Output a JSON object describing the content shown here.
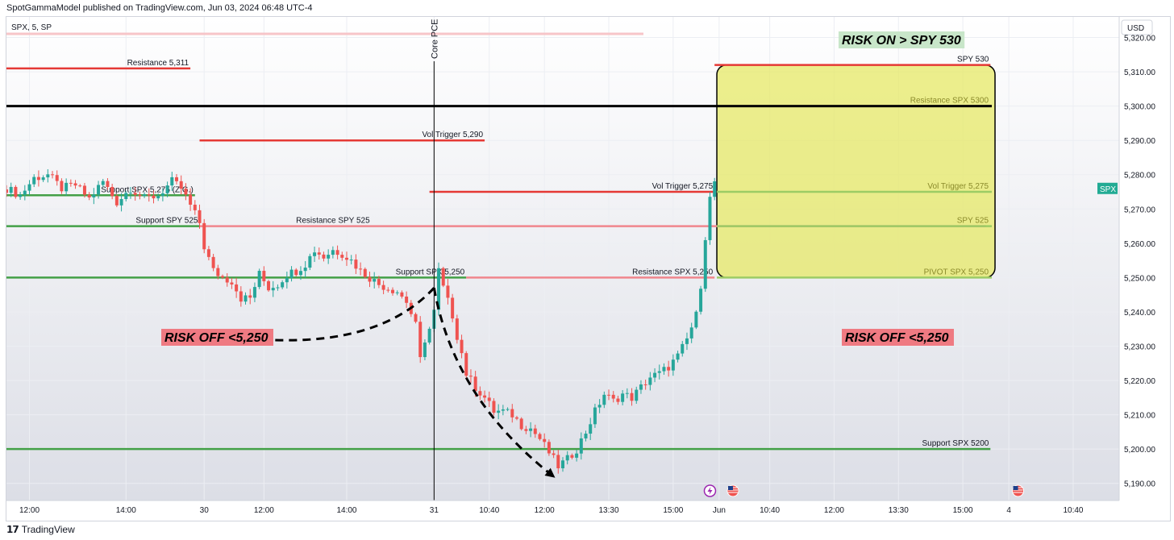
{
  "header": {
    "published": "SpotGammaModel published on TradingView.com, Jun 03, 2024 06:48 UTC-4"
  },
  "footer": {
    "brand": "TradingView",
    "logo": "tradingview-logo-icon"
  },
  "symbol_label": "SPX, 5, SP",
  "currency": "USD",
  "colors": {
    "up": "#26a69a",
    "down": "#ef5350",
    "support_line": "#43a047",
    "resistance_line": "#e53935",
    "resistance_light": "#f0868d",
    "box_fill": "#e6e85c",
    "risk_on_bg": "#c8e6c9",
    "risk_off_bg": "#ef7a82",
    "spx_badge": "#22ab94"
  },
  "chart_data": {
    "type": "candlestick",
    "title": "",
    "xlabel": "",
    "ylabel": "",
    "ylim": [
      5185,
      5326
    ],
    "yticks": [
      5190,
      5200,
      5210,
      5220,
      5230,
      5240,
      5250,
      5260,
      5270,
      5280,
      5290,
      5300,
      5310,
      5320
    ],
    "ytick_labels": [
      "5,190.00",
      "5,200.00",
      "5,210.00",
      "5,220.00",
      "5,230.00",
      "5,240.00",
      "5,250.00",
      "5,260.00",
      "5,270.00",
      "5,280.00",
      "5,290.00",
      "5,300.00",
      "5,310.00",
      "5,320.00"
    ],
    "xlim": [
      0,
      242
    ],
    "xticks": [
      {
        "x": 5,
        "label": "12:00"
      },
      {
        "x": 26,
        "label": "14:00"
      },
      {
        "x": 43,
        "label": "30"
      },
      {
        "x": 56,
        "label": "12:00"
      },
      {
        "x": 74,
        "label": "14:00"
      },
      {
        "x": 93,
        "label": "31"
      },
      {
        "x": 105,
        "label": "10:40"
      },
      {
        "x": 117,
        "label": "12:00"
      },
      {
        "x": 131,
        "label": "13:30"
      },
      {
        "x": 145,
        "label": "15:00"
      },
      {
        "x": 155,
        "label": "Jun"
      },
      {
        "x": 166,
        "label": "10:40"
      },
      {
        "x": 180,
        "label": "12:00"
      },
      {
        "x": 194,
        "label": "13:30"
      },
      {
        "x": 208,
        "label": "15:00"
      },
      {
        "x": 218,
        "label": "4"
      },
      {
        "x": 232,
        "label": "10:40"
      }
    ],
    "close_anchors": [
      [
        0,
        5276
      ],
      [
        3,
        5274
      ],
      [
        6,
        5279
      ],
      [
        9,
        5280
      ],
      [
        12,
        5276
      ],
      [
        15,
        5277
      ],
      [
        18,
        5273
      ],
      [
        21,
        5278
      ],
      [
        24,
        5272
      ],
      [
        27,
        5276
      ],
      [
        30,
        5273
      ],
      [
        33,
        5274
      ],
      [
        36,
        5278
      ],
      [
        38,
        5276
      ],
      [
        40,
        5271
      ],
      [
        42,
        5266
      ],
      [
        43,
        5259
      ],
      [
        45,
        5252
      ],
      [
        47,
        5250
      ],
      [
        49,
        5249
      ],
      [
        51,
        5244
      ],
      [
        53,
        5244
      ],
      [
        55,
        5251
      ],
      [
        57,
        5247
      ],
      [
        59,
        5248
      ],
      [
        61,
        5251
      ],
      [
        63,
        5252
      ],
      [
        65,
        5254
      ],
      [
        67,
        5258
      ],
      [
        69,
        5256
      ],
      [
        71,
        5258
      ],
      [
        73,
        5257
      ],
      [
        75,
        5255
      ],
      [
        77,
        5252
      ],
      [
        79,
        5250
      ],
      [
        81,
        5248
      ],
      [
        83,
        5247
      ],
      [
        85,
        5246
      ],
      [
        87,
        5243
      ],
      [
        89,
        5236
      ],
      [
        90,
        5226
      ],
      [
        91,
        5232
      ],
      [
        92,
        5235
      ],
      [
        93,
        5240
      ],
      [
        94,
        5252
      ],
      [
        95,
        5247
      ],
      [
        96,
        5243
      ],
      [
        97,
        5239
      ],
      [
        98,
        5233
      ],
      [
        99,
        5228
      ],
      [
        100,
        5222
      ],
      [
        102,
        5218
      ],
      [
        104,
        5215
      ],
      [
        106,
        5211
      ],
      [
        108,
        5211
      ],
      [
        110,
        5210
      ],
      [
        112,
        5207
      ],
      [
        114,
        5206
      ],
      [
        116,
        5203
      ],
      [
        118,
        5199
      ],
      [
        119,
        5197
      ],
      [
        120,
        5195
      ],
      [
        121,
        5196
      ],
      [
        122,
        5197
      ],
      [
        124,
        5200
      ],
      [
        126,
        5205
      ],
      [
        128,
        5211
      ],
      [
        130,
        5216
      ],
      [
        132,
        5214
      ],
      [
        134,
        5216
      ],
      [
        136,
        5215
      ],
      [
        138,
        5218
      ],
      [
        140,
        5221
      ],
      [
        142,
        5222
      ],
      [
        144,
        5224
      ],
      [
        146,
        5227
      ],
      [
        148,
        5232
      ],
      [
        150,
        5239
      ],
      [
        151,
        5248
      ],
      [
        152,
        5262
      ],
      [
        153,
        5273
      ],
      [
        154,
        5278
      ]
    ],
    "levels": [
      {
        "label": "Resistance 5,311",
        "y": 5311,
        "x0": 0,
        "x1": 40,
        "color": "resistance"
      },
      {
        "label": "Vol Trigger 5,290",
        "y": 5290,
        "x0": 42,
        "x1": 104,
        "color": "resistance"
      },
      {
        "label": "Support SPX 5,275 (Z.G.)",
        "y": 5274,
        "x0": 0,
        "x1": 41,
        "color": "support"
      },
      {
        "label": "Support SPY 525",
        "y": 5265,
        "x0": 0,
        "x1": 42,
        "color": "support"
      },
      {
        "label": "Resistance SPY 525",
        "y": 5265,
        "x0": 42,
        "x1": 213,
        "color": "resistance_light"
      },
      {
        "label": "Vol Trigger 5,275",
        "y": 5275,
        "x0": 92,
        "x1": 154,
        "color": "resistance"
      },
      {
        "label": "Support SPX 5,250",
        "y": 5250,
        "x0": 0,
        "x1": 100,
        "color": "support"
      },
      {
        "label": "Resistance SPX 5,250",
        "y": 5250,
        "x0": 100,
        "x1": 154,
        "color": "resistance_light"
      },
      {
        "label": "Support SPX 5200",
        "y": 5200,
        "x0": 0,
        "x1": 214,
        "color": "support"
      },
      {
        "label": "SPY 530",
        "y": 5312,
        "x0": 154,
        "x1": 214,
        "color": "resistance"
      }
    ],
    "box_levels": [
      {
        "label": "Resistance SPX 5300",
        "y": 5300,
        "color": "#000000"
      },
      {
        "label": "Vol Trigger 5,275",
        "y": 5275,
        "color": "#9ccc65"
      },
      {
        "label": "SPY 525",
        "y": 5265,
        "color": "#9ccc65"
      },
      {
        "label": "PIVOT SPX 5,250",
        "y": 5250,
        "color": "#9ccc65"
      }
    ],
    "black_line": {
      "y": 5300
    },
    "box": {
      "x0": 154.5,
      "x1": 215,
      "y0": 5250,
      "y1": 5312
    },
    "event_line": {
      "x": 93,
      "label": "Core PCE"
    },
    "last_price_tag": "SPX",
    "annotations": {
      "risk_on": "RISK ON > SPY 530",
      "risk_off_left": "RISK OFF <5,250",
      "risk_off_right": "RISK OFF <5,250"
    },
    "arrows": [
      {
        "from": [
          93,
          5247
        ],
        "to": [
          55,
          5232
        ]
      },
      {
        "from": [
          93,
          5247
        ],
        "to": [
          119,
          5192
        ]
      }
    ],
    "event_icons": [
      {
        "x": 153,
        "name": "lightning-event-icon"
      },
      {
        "x": 158,
        "name": "us-flag-icon"
      },
      {
        "x": 220,
        "name": "us-flag-icon"
      }
    ]
  }
}
